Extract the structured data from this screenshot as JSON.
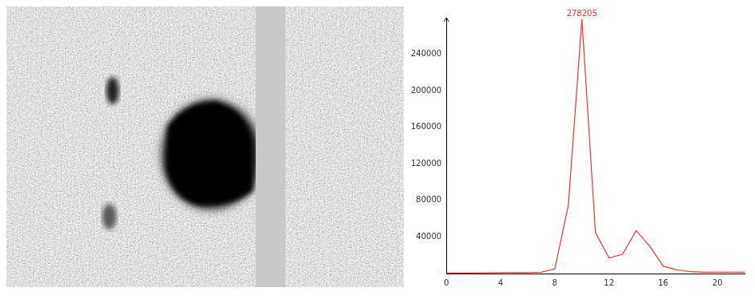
{
  "chart_data": {
    "type": "line",
    "x": [
      0,
      1,
      2,
      3,
      4,
      5,
      6,
      7,
      8,
      9,
      10,
      11,
      12,
      13,
      14,
      15,
      16,
      17,
      18,
      19,
      20,
      21,
      22
    ],
    "values": [
      500,
      500,
      600,
      700,
      1000,
      1000,
      1000,
      1500,
      5000,
      75000,
      278205,
      45000,
      17000,
      21000,
      47000,
      30000,
      8000,
      4000,
      2000,
      1500,
      1500,
      1500,
      1500
    ],
    "color": "#ee3333",
    "xlim": [
      0,
      22
    ],
    "xticks": [
      0,
      4,
      8,
      12,
      16,
      20
    ],
    "ylim": [
      0,
      280000
    ],
    "yticks": [
      40000,
      80000,
      120000,
      160000,
      200000,
      240000
    ],
    "grid": false,
    "annotations": [
      {
        "text": "278205",
        "x": 10,
        "y": 278205
      }
    ]
  }
}
